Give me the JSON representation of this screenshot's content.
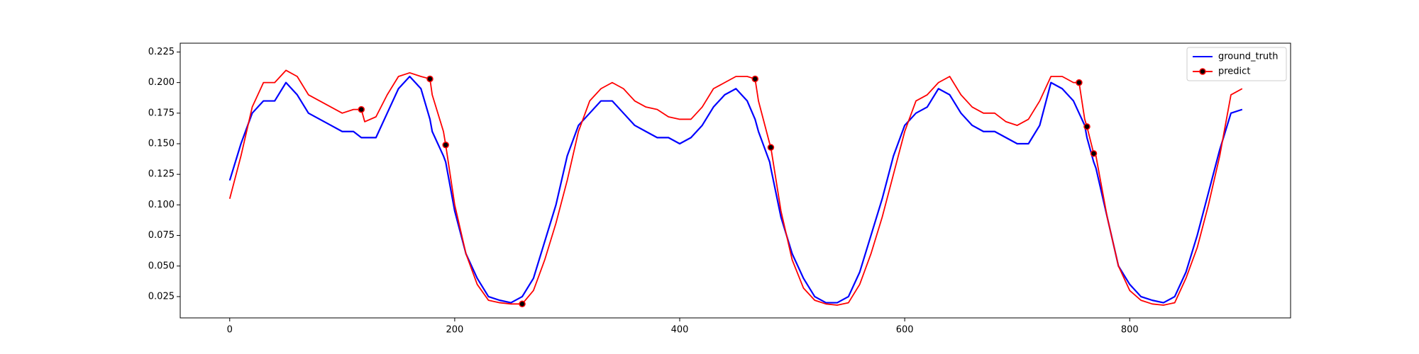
{
  "chart_data": {
    "type": "line",
    "x": [
      0,
      10,
      20,
      30,
      40,
      50,
      60,
      70,
      80,
      90,
      100,
      110,
      117,
      120,
      130,
      140,
      150,
      160,
      170,
      178,
      180,
      190,
      192,
      200,
      210,
      220,
      230,
      240,
      250,
      260,
      270,
      280,
      290,
      300,
      310,
      320,
      330,
      340,
      350,
      360,
      370,
      380,
      390,
      400,
      410,
      420,
      430,
      440,
      450,
      460,
      467,
      470,
      480,
      481,
      490,
      500,
      510,
      520,
      530,
      540,
      550,
      560,
      570,
      580,
      590,
      600,
      610,
      620,
      630,
      640,
      650,
      660,
      670,
      680,
      690,
      700,
      710,
      720,
      730,
      740,
      750,
      755,
      760,
      762,
      768,
      770,
      780,
      790,
      800,
      810,
      820,
      830,
      840,
      850,
      860,
      870,
      880,
      890,
      900
    ],
    "series": [
      {
        "name": "ground_truth",
        "color": "#0000ff",
        "values": [
          0.12,
          0.15,
          0.175,
          0.185,
          0.185,
          0.2,
          0.19,
          0.175,
          0.17,
          0.165,
          0.16,
          0.16,
          0.155,
          0.155,
          0.155,
          0.175,
          0.195,
          0.205,
          0.195,
          0.17,
          0.16,
          0.14,
          0.135,
          0.095,
          0.06,
          0.04,
          0.025,
          0.022,
          0.02,
          0.025,
          0.04,
          0.07,
          0.1,
          0.14,
          0.165,
          0.175,
          0.185,
          0.185,
          0.175,
          0.165,
          0.16,
          0.155,
          0.155,
          0.15,
          0.155,
          0.165,
          0.18,
          0.19,
          0.195,
          0.185,
          0.17,
          0.16,
          0.135,
          0.13,
          0.09,
          0.06,
          0.04,
          0.025,
          0.02,
          0.02,
          0.025,
          0.045,
          0.075,
          0.105,
          0.14,
          0.165,
          0.175,
          0.18,
          0.195,
          0.19,
          0.175,
          0.165,
          0.16,
          0.16,
          0.155,
          0.15,
          0.15,
          0.165,
          0.2,
          0.195,
          0.185,
          0.175,
          0.165,
          0.155,
          0.135,
          0.13,
          0.09,
          0.05,
          0.035,
          0.025,
          0.022,
          0.02,
          0.025,
          0.045,
          0.075,
          0.11,
          0.145,
          0.175,
          0.178
        ]
      },
      {
        "name": "predict",
        "color": "#ff0000",
        "markevery": [
          12,
          19,
          22,
          29,
          50,
          53,
          81,
          83,
          84
        ],
        "values": [
          0.105,
          0.14,
          0.18,
          0.2,
          0.2,
          0.21,
          0.205,
          0.19,
          0.185,
          0.18,
          0.175,
          0.178,
          0.178,
          0.168,
          0.172,
          0.19,
          0.205,
          0.208,
          0.205,
          0.203,
          0.19,
          0.16,
          0.149,
          0.1,
          0.06,
          0.035,
          0.022,
          0.02,
          0.019,
          0.019,
          0.03,
          0.055,
          0.085,
          0.12,
          0.16,
          0.185,
          0.195,
          0.2,
          0.195,
          0.185,
          0.18,
          0.178,
          0.172,
          0.17,
          0.17,
          0.18,
          0.195,
          0.2,
          0.205,
          0.205,
          0.203,
          0.185,
          0.15,
          0.147,
          0.095,
          0.055,
          0.032,
          0.022,
          0.019,
          0.018,
          0.02,
          0.035,
          0.06,
          0.09,
          0.125,
          0.16,
          0.185,
          0.19,
          0.2,
          0.205,
          0.19,
          0.18,
          0.175,
          0.175,
          0.168,
          0.165,
          0.17,
          0.185,
          0.205,
          0.205,
          0.2,
          0.2,
          0.17,
          0.164,
          0.142,
          0.14,
          0.09,
          0.05,
          0.03,
          0.022,
          0.019,
          0.018,
          0.02,
          0.04,
          0.065,
          0.1,
          0.14,
          0.19,
          0.195
        ]
      }
    ],
    "xlim": [
      -44,
      943
    ],
    "ylim": [
      0.0076,
      0.2322
    ],
    "xticks": [
      0,
      200,
      400,
      600,
      800
    ],
    "yticks": [
      0.025,
      {
        "value": 0.05,
        "label": "0.050"
      },
      0.075,
      {
        "value": 0.1,
        "label": "0.100"
      },
      0.125,
      {
        "value": 0.15,
        "label": "0.150"
      },
      0.175,
      {
        "value": 0.2,
        "label": "0.200"
      },
      0.225
    ],
    "legend": "upper right",
    "grid": false
  }
}
